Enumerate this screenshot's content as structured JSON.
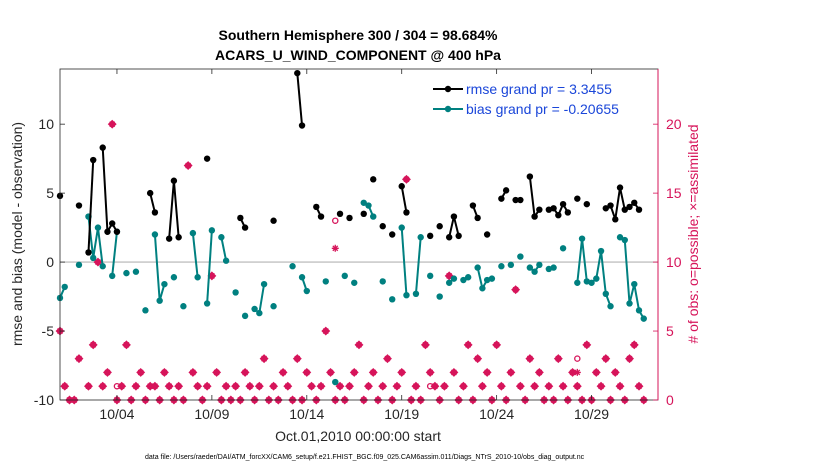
{
  "chart_data": {
    "type": "line",
    "title": "Southern Hemisphere 300 / 304 = 98.684%",
    "subtitle": "ACARS_U_WIND_COMPONENT @ 400 hPa",
    "xlabel": "Oct.01,2010 00:00:00 start",
    "ylabel": "rmse and bias (model - observation)",
    "y2label": "# of obs: o=possible; ×=assimilated",
    "footer": "data file: /Users/raeder/DAI/ATM_forcXX/CAM6_setup/f.e21.FHIST_BGC.f09_025.CAM6assim.011/Diags_NTrS_2010-10/obs_diag_output.nc",
    "xlim": [
      0,
      31.5
    ],
    "ylim": [
      -10,
      14
    ],
    "y2lim": [
      0,
      24
    ],
    "x_ticks": [
      3,
      8,
      13,
      18,
      23,
      28
    ],
    "x_tick_labels": [
      "10/04",
      "10/09",
      "10/14",
      "10/19",
      "10/24",
      "10/29"
    ],
    "y_ticks": [
      -10,
      -5,
      0,
      5,
      10
    ],
    "y_tick_labels": [
      "-10",
      "-5",
      "0",
      "5",
      "10"
    ],
    "y2_ticks": [
      0,
      5,
      10,
      15,
      20
    ],
    "y2_tick_labels": [
      "0",
      "5",
      "10",
      "15",
      "20"
    ],
    "colors": {
      "rmse": "#000000",
      "bias": "#008080",
      "obs": "#d6145a",
      "zero": "#b3b3b3"
    },
    "series": [
      {
        "name": "rmse grand pr = 3.3455",
        "color": "#000000",
        "x": [
          0.0,
          1.0,
          1.5,
          1.75,
          2.0,
          2.25,
          2.5,
          2.75,
          3.0,
          3.25,
          4.75,
          5.0,
          5.75,
          6.0,
          6.25,
          6.5,
          7.75,
          8.25,
          8.75,
          9.5,
          9.75,
          10.25,
          10.5,
          10.75,
          11.25,
          11.75,
          12.5,
          12.75,
          13.5,
          13.75,
          14.75,
          15.25,
          16.0,
          16.5,
          17.0,
          17.5,
          18.0,
          18.25,
          18.75,
          19.5,
          20.0,
          20.5,
          20.75,
          21.0,
          21.25,
          21.75,
          22.0,
          22.25,
          22.5,
          22.75,
          23.25,
          23.5,
          24.0,
          24.25,
          24.75,
          25.0,
          25.25,
          25.75,
          26.0,
          26.25,
          26.5,
          26.75,
          27.25,
          27.5,
          27.75,
          28.75,
          29.0,
          29.25,
          29.5,
          29.75,
          30.0,
          30.25,
          30.5
        ],
        "y": [
          4.8,
          4.1,
          0.7,
          7.4,
          null,
          8.3,
          2.2,
          2.8,
          2.2,
          null,
          5.0,
          3.6,
          1.7,
          5.9,
          1.8,
          null,
          7.5,
          null,
          null,
          3.2,
          2.5,
          null,
          null,
          null,
          3.0,
          null,
          13.7,
          9.9,
          4.0,
          3.3,
          3.5,
          3.2,
          3.5,
          6.0,
          2.6,
          2.0,
          5.5,
          3.6,
          null,
          1.9,
          2.6,
          1.8,
          3.3,
          1.9,
          null,
          4.1,
          3.2,
          null,
          2.0,
          null,
          4.6,
          5.2,
          4.5,
          4.5,
          6.2,
          3.3,
          3.8,
          3.8,
          3.9,
          3.4,
          4.2,
          3.6,
          4.6,
          null,
          4.2,
          3.9,
          4.1,
          3.1,
          5.4,
          3.8,
          4.0,
          4.3,
          3.8
        ]
      },
      {
        "name": "bias grand pr = -0.20655",
        "color": "#008080",
        "x": [
          0.0,
          0.25,
          1.0,
          1.5,
          1.75,
          2.0,
          2.25,
          2.75,
          3.0,
          3.5,
          4.0,
          4.5,
          5.0,
          5.25,
          5.5,
          6.0,
          6.5,
          7.0,
          7.25,
          7.75,
          8.0,
          8.25,
          8.5,
          8.75,
          9.25,
          9.75,
          10.25,
          10.5,
          10.75,
          11.25,
          12.25,
          12.5,
          12.75,
          13.0,
          13.25,
          14.0,
          14.5,
          15.0,
          15.5,
          16.0,
          16.25,
          16.5,
          17.0,
          17.5,
          18.0,
          18.25,
          18.75,
          19.0,
          19.5,
          20.0,
          20.5,
          20.75,
          21.25,
          21.5,
          22.0,
          22.25,
          22.5,
          22.75,
          23.25,
          23.75,
          24.25,
          24.75,
          25.0,
          25.25,
          25.75,
          26.0,
          26.5,
          27.0,
          27.25,
          27.5,
          27.75,
          28.0,
          28.25,
          28.5,
          28.75,
          29.0,
          29.5,
          29.75,
          30.0,
          30.25,
          30.5,
          30.75
        ],
        "y": [
          -2.6,
          -1.8,
          -0.2,
          3.3,
          0.3,
          2.5,
          -0.3,
          -1.0,
          2.2,
          -0.8,
          -0.7,
          -3.5,
          2.0,
          -2.8,
          -1.6,
          -1.1,
          -3.2,
          2.1,
          -1.1,
          -3.0,
          2.3,
          null,
          1.8,
          0.1,
          -2.2,
          -3.9,
          -3.4,
          -3.7,
          -1.6,
          -3.2,
          -0.3,
          null,
          -1.1,
          -2.1,
          null,
          -1.4,
          -8.7,
          -1.0,
          -1.5,
          4.3,
          4.1,
          3.3,
          -1.4,
          -2.7,
          2.5,
          -2.4,
          -2.3,
          1.8,
          -1.0,
          -2.5,
          -1.5,
          -1.2,
          -1.3,
          -1.1,
          -0.4,
          -1.9,
          -1.3,
          -1.2,
          -0.3,
          -0.2,
          0.4,
          -0.4,
          -0.7,
          -0.2,
          -0.5,
          -0.4,
          1.0,
          null,
          -1.5,
          1.7,
          -1.4,
          -1.5,
          -1.2,
          0.8,
          -2.3,
          -3.2,
          1.8,
          1.6,
          -3.0,
          -1.6,
          -3.5,
          -4.1
        ]
      },
      {
        "name": "obs possible / assimilated",
        "color": "#d6145a",
        "axis": "right",
        "x": [
          0.0,
          0.25,
          0.5,
          0.75,
          1.0,
          1.5,
          1.75,
          2.0,
          2.25,
          2.5,
          2.75,
          3.0,
          3.25,
          3.5,
          3.75,
          4.0,
          4.25,
          4.5,
          4.75,
          5.0,
          5.25,
          5.5,
          5.75,
          6.0,
          6.25,
          6.5,
          6.75,
          7.0,
          7.25,
          7.5,
          7.75,
          8.0,
          8.25,
          8.5,
          8.75,
          9.0,
          9.25,
          9.5,
          9.75,
          10.0,
          10.25,
          10.5,
          10.75,
          11.0,
          11.25,
          11.5,
          11.75,
          12.0,
          12.25,
          12.5,
          12.75,
          13.0,
          13.25,
          13.5,
          13.75,
          14.0,
          14.25,
          14.5,
          14.75,
          15.0,
          15.25,
          15.5,
          15.75,
          16.0,
          16.25,
          16.5,
          16.75,
          17.0,
          17.25,
          17.5,
          17.75,
          18.0,
          18.25,
          18.5,
          18.75,
          19.0,
          19.25,
          19.5,
          19.75,
          20.0,
          20.25,
          20.5,
          20.75,
          21.0,
          21.25,
          21.5,
          21.75,
          22.0,
          22.25,
          22.5,
          22.75,
          23.0,
          23.25,
          23.5,
          23.75,
          24.0,
          24.25,
          24.5,
          24.75,
          25.0,
          25.25,
          25.5,
          25.75,
          26.0,
          26.25,
          26.5,
          26.75,
          27.0,
          27.25,
          27.5,
          27.75,
          28.0,
          28.25,
          28.5,
          28.75,
          29.0,
          29.25,
          29.5,
          29.75,
          30.0,
          30.25,
          30.5,
          30.75
        ],
        "y": [
          5,
          1,
          0,
          0,
          3,
          1,
          4,
          10,
          1,
          2,
          20,
          0,
          1,
          4,
          0,
          1,
          2,
          0,
          1,
          1,
          0,
          2,
          1,
          0,
          1,
          0,
          17,
          2,
          1,
          0,
          1,
          9,
          2,
          0,
          1,
          0,
          1,
          0,
          2,
          1,
          0,
          1,
          3,
          0,
          1,
          0,
          2,
          1,
          0,
          3,
          0,
          2,
          1,
          0,
          1,
          5,
          2,
          0,
          1,
          0,
          1,
          2,
          4,
          0,
          1,
          2,
          0,
          1,
          3,
          0,
          1,
          2,
          16,
          0,
          1,
          0,
          4,
          2,
          1,
          0,
          1,
          9,
          2,
          0,
          1,
          4,
          0,
          3,
          1,
          2,
          0,
          4,
          1,
          0,
          2,
          8,
          1,
          0,
          3,
          1,
          2,
          0,
          1,
          0,
          3,
          1,
          0,
          2,
          1,
          0,
          4,
          0,
          2,
          1,
          3,
          0,
          2,
          1,
          0,
          3,
          4,
          1,
          0
        ]
      }
    ],
    "circles": [
      [
        1.5,
        1
      ],
      [
        3.0,
        1
      ],
      [
        14.5,
        13
      ],
      [
        19.5,
        1
      ],
      [
        27.25,
        3
      ]
    ],
    "stars": [
      [
        14.5,
        11
      ],
      [
        27.25,
        2
      ]
    ],
    "legend_position": "top-right",
    "grid": false
  }
}
